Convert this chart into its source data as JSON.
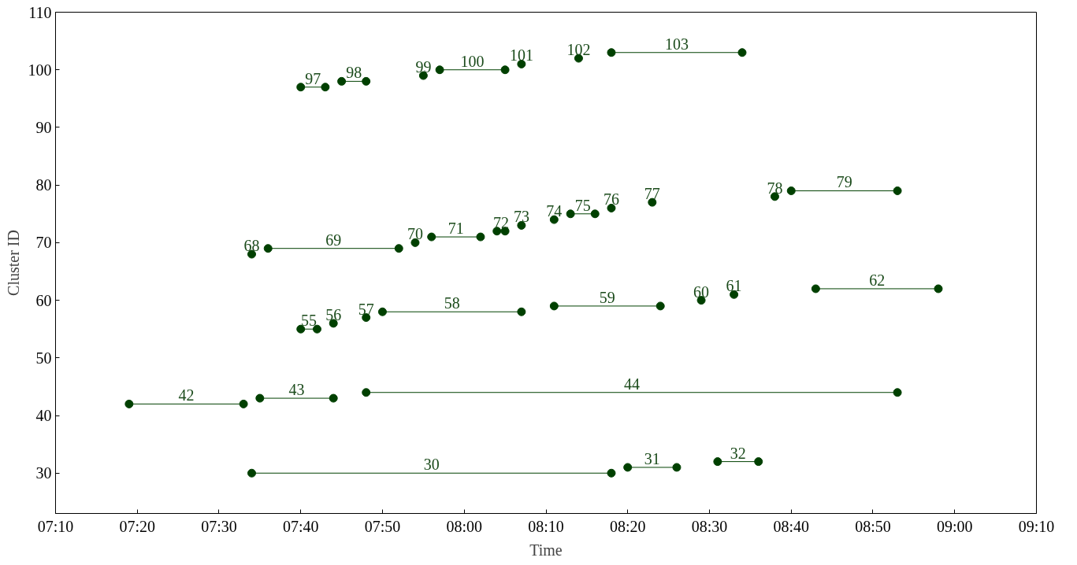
{
  "chart_data": {
    "type": "line",
    "xlabel": "Time",
    "ylabel": "Cluster ID",
    "marker": "circle",
    "line_style": "solid",
    "grid": false,
    "xlim": [
      7.1667,
      9.1667
    ],
    "ylim": [
      23,
      110
    ],
    "xticks": [
      {
        "value": 7.1667,
        "label": "07:10"
      },
      {
        "value": 7.3333,
        "label": "07:20"
      },
      {
        "value": 7.5,
        "label": "07:30"
      },
      {
        "value": 7.6667,
        "label": "07:40"
      },
      {
        "value": 7.8333,
        "label": "07:50"
      },
      {
        "value": 8,
        "label": "08:00"
      },
      {
        "value": 8.1667,
        "label": "08:10"
      },
      {
        "value": 8.3333,
        "label": "08:20"
      },
      {
        "value": 8.5,
        "label": "08:30"
      },
      {
        "value": 8.6667,
        "label": "08:40"
      },
      {
        "value": 8.8333,
        "label": "08:50"
      },
      {
        "value": 9,
        "label": "09:00"
      },
      {
        "value": 9.1667,
        "label": "09:10"
      }
    ],
    "yticks": [
      30,
      40,
      50,
      60,
      70,
      80,
      90,
      100,
      110
    ],
    "series": [
      {
        "name": "30",
        "color": "#004000",
        "x": [
          7.5667,
          8.3
        ],
        "values": [
          30,
          30
        ]
      },
      {
        "name": "31",
        "color": "#004000",
        "x": [
          8.3333,
          8.4333
        ],
        "values": [
          31,
          31
        ]
      },
      {
        "name": "32",
        "color": "#004000",
        "x": [
          8.5167,
          8.6
        ],
        "values": [
          32,
          32
        ]
      },
      {
        "name": "42",
        "color": "#004000",
        "x": [
          7.3167,
          7.55
        ],
        "values": [
          42,
          42
        ]
      },
      {
        "name": "43",
        "color": "#004000",
        "x": [
          7.5833,
          7.7333
        ],
        "values": [
          43,
          43
        ]
      },
      {
        "name": "44",
        "color": "#004000",
        "x": [
          7.8,
          8.8833
        ],
        "values": [
          44,
          44
        ]
      },
      {
        "name": "55",
        "color": "#004000",
        "x": [
          7.6667,
          7.7
        ],
        "values": [
          55,
          55
        ]
      },
      {
        "name": "56",
        "color": "#004000",
        "x": [
          7.7333
        ],
        "values": [
          56
        ]
      },
      {
        "name": "57",
        "color": "#004000",
        "x": [
          7.8
        ],
        "values": [
          57
        ]
      },
      {
        "name": "58",
        "color": "#004000",
        "x": [
          7.8333,
          8.1167
        ],
        "values": [
          58,
          58
        ]
      },
      {
        "name": "59",
        "color": "#004000",
        "x": [
          8.1833,
          8.4
        ],
        "values": [
          59,
          59
        ]
      },
      {
        "name": "60",
        "color": "#004000",
        "x": [
          8.4833
        ],
        "values": [
          60
        ]
      },
      {
        "name": "61",
        "color": "#004000",
        "x": [
          8.55
        ],
        "values": [
          61
        ]
      },
      {
        "name": "62",
        "color": "#004000",
        "x": [
          8.7167,
          8.9667
        ],
        "values": [
          62,
          62
        ]
      },
      {
        "name": "68",
        "color": "#004000",
        "x": [
          7.5667
        ],
        "values": [
          68
        ]
      },
      {
        "name": "69",
        "color": "#004000",
        "x": [
          7.6,
          7.8667
        ],
        "values": [
          69,
          69
        ]
      },
      {
        "name": "70",
        "color": "#004000",
        "x": [
          7.9
        ],
        "values": [
          70
        ]
      },
      {
        "name": "71",
        "color": "#004000",
        "x": [
          7.9333,
          8.0333
        ],
        "values": [
          71,
          71
        ]
      },
      {
        "name": "72",
        "color": "#004000",
        "x": [
          8.0667,
          8.0833
        ],
        "values": [
          72,
          72
        ]
      },
      {
        "name": "73",
        "color": "#004000",
        "x": [
          8.1167
        ],
        "values": [
          73
        ]
      },
      {
        "name": "74",
        "color": "#004000",
        "x": [
          8.1833
        ],
        "values": [
          74
        ]
      },
      {
        "name": "75",
        "color": "#004000",
        "x": [
          8.2167,
          8.2667
        ],
        "values": [
          75,
          75
        ]
      },
      {
        "name": "76",
        "color": "#004000",
        "x": [
          8.3
        ],
        "values": [
          76
        ]
      },
      {
        "name": "77",
        "color": "#004000",
        "x": [
          8.3833
        ],
        "values": [
          77
        ]
      },
      {
        "name": "78",
        "color": "#004000",
        "x": [
          8.6333
        ],
        "values": [
          78
        ]
      },
      {
        "name": "79",
        "color": "#004000",
        "x": [
          8.6667,
          8.8833
        ],
        "values": [
          79,
          79
        ]
      },
      {
        "name": "97",
        "color": "#004000",
        "x": [
          7.6667,
          7.7167
        ],
        "values": [
          97,
          97
        ]
      },
      {
        "name": "98",
        "color": "#004000",
        "x": [
          7.75,
          7.8
        ],
        "values": [
          98,
          98
        ]
      },
      {
        "name": "99",
        "color": "#004000",
        "x": [
          7.9167
        ],
        "values": [
          99
        ]
      },
      {
        "name": "100",
        "color": "#004000",
        "x": [
          7.95,
          8.0833
        ],
        "values": [
          100,
          100
        ]
      },
      {
        "name": "101",
        "color": "#004000",
        "x": [
          8.1167
        ],
        "values": [
          101
        ]
      },
      {
        "name": "102",
        "color": "#004000",
        "x": [
          8.2333
        ],
        "values": [
          102
        ]
      },
      {
        "name": "103",
        "color": "#004000",
        "x": [
          8.3,
          8.5667
        ],
        "values": [
          103,
          103
        ]
      }
    ]
  }
}
